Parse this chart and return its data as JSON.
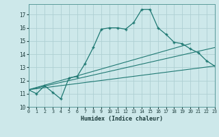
{
  "xlabel": "Humidex (Indice chaleur)",
  "bg_color": "#cde8ea",
  "grid_color": "#aed0d3",
  "line_color": "#1e7872",
  "xlim": [
    0,
    23
  ],
  "ylim": [
    10,
    17.8
  ],
  "yticks": [
    10,
    11,
    12,
    13,
    14,
    15,
    16,
    17
  ],
  "xticks": [
    0,
    1,
    2,
    3,
    4,
    5,
    6,
    7,
    8,
    9,
    10,
    11,
    12,
    13,
    14,
    15,
    16,
    17,
    18,
    19,
    20,
    21,
    22,
    23
  ],
  "line1_x": [
    0,
    1,
    2,
    3,
    4,
    5,
    6,
    7,
    8,
    9,
    10,
    11,
    12,
    13,
    14,
    15,
    16,
    17,
    18,
    19,
    20,
    21,
    22,
    23
  ],
  "line1_y": [
    11.3,
    11.0,
    11.6,
    11.1,
    10.6,
    12.2,
    12.3,
    13.3,
    14.5,
    15.9,
    16.0,
    16.0,
    15.9,
    16.4,
    17.4,
    17.4,
    16.0,
    15.5,
    14.9,
    14.8,
    14.4,
    14.1,
    13.5,
    13.1
  ],
  "line2_x": [
    0,
    23
  ],
  "line2_y": [
    11.3,
    14.5
  ],
  "line3_x": [
    0,
    23
  ],
  "line3_y": [
    11.3,
    13.1
  ],
  "line4_x": [
    0,
    20
  ],
  "line4_y": [
    11.3,
    14.8
  ]
}
